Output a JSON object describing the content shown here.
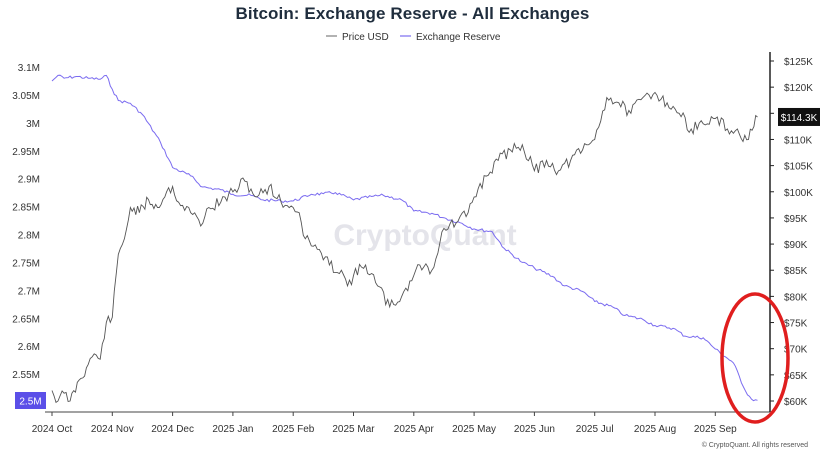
{
  "chart_data": {
    "type": "line",
    "title": "Bitcoin: Exchange Reserve - All Exchanges",
    "legend": [
      {
        "name": "Price USD",
        "color": "#666666"
      },
      {
        "name": "Exchange Reserve",
        "color": "#7b6cf0"
      }
    ],
    "legend_position": "top-center",
    "x_ticks": [
      "2024 Oct",
      "2024 Nov",
      "2024 Dec",
      "2025 Jan",
      "2025 Feb",
      "2025 Mar",
      "2025 Apr",
      "2025 May",
      "2025 Jun",
      "2025 Jul",
      "2025 Aug",
      "2025 Sep"
    ],
    "y_left_ticks": [
      "3.1M",
      "3.05M",
      "3M",
      "2.95M",
      "2.9M",
      "2.85M",
      "2.8M",
      "2.75M",
      "2.7M",
      "2.65M",
      "2.6M",
      "2.55M"
    ],
    "y_left_range": [
      2.5,
      3.1
    ],
    "y_left_current": "2.5M",
    "y_right_ticks": [
      "$125K",
      "$120K",
      "$115K",
      "$110K",
      "$105K",
      "$100K",
      "$95K",
      "$90K",
      "$85K",
      "$80K",
      "$75K",
      "$70K",
      "$65K",
      "$60K"
    ],
    "y_right_range": [
      60,
      125
    ],
    "y_right_current": "$114.3K",
    "series": [
      {
        "name": "Exchange Reserve",
        "unit": "M BTC",
        "x": [
          0,
          0.1,
          0.2,
          0.4,
          0.6,
          0.8,
          0.9,
          1.0,
          1.1,
          1.3,
          1.5,
          1.8,
          2.0,
          2.3,
          2.5,
          2.8,
          3.0,
          3.3,
          3.5,
          3.8,
          4.0,
          4.3,
          4.5,
          4.7,
          5.0,
          5.3,
          5.5,
          5.8,
          6.0,
          6.3,
          6.5,
          6.8,
          7.0,
          7.3,
          7.5,
          7.8,
          8.0,
          8.3,
          8.5,
          8.8,
          9.0,
          9.3,
          9.5,
          9.8,
          10.0,
          10.3,
          10.5,
          10.8,
          11.0,
          11.3,
          11.5,
          11.6,
          11.7
        ],
        "values": [
          3.075,
          3.085,
          3.08,
          3.083,
          3.08,
          3.078,
          3.085,
          3.06,
          3.04,
          3.035,
          3.015,
          2.965,
          2.92,
          2.905,
          2.885,
          2.88,
          2.872,
          2.87,
          2.862,
          2.86,
          2.86,
          2.872,
          2.873,
          2.875,
          2.862,
          2.868,
          2.87,
          2.862,
          2.842,
          2.838,
          2.83,
          2.82,
          2.81,
          2.805,
          2.775,
          2.75,
          2.74,
          2.725,
          2.708,
          2.698,
          2.68,
          2.67,
          2.655,
          2.648,
          2.637,
          2.632,
          2.618,
          2.615,
          2.595,
          2.57,
          2.52,
          2.505,
          2.503
        ]
      },
      {
        "name": "Price USD",
        "unit": "$K",
        "x": [
          0,
          0.1,
          0.2,
          0.3,
          0.45,
          0.6,
          0.7,
          0.8,
          0.9,
          1.0,
          1.1,
          1.2,
          1.3,
          1.45,
          1.6,
          1.75,
          1.9,
          2.0,
          2.1,
          2.3,
          2.5,
          2.6,
          2.8,
          3.0,
          3.2,
          3.4,
          3.6,
          3.8,
          4.0,
          4.1,
          4.2,
          4.4,
          4.6,
          4.8,
          4.9,
          5.0,
          5.2,
          5.4,
          5.6,
          5.8,
          6.0,
          6.1,
          6.3,
          6.5,
          6.7,
          6.9,
          7.0,
          7.2,
          7.4,
          7.6,
          7.8,
          8.0,
          8.2,
          8.4,
          8.6,
          8.8,
          9.0,
          9.2,
          9.4,
          9.6,
          9.8,
          10.0,
          10.2,
          10.4,
          10.6,
          10.8,
          11.0,
          11.2,
          11.4,
          11.55,
          11.7
        ],
        "values": [
          62,
          60,
          61.5,
          60,
          64,
          67,
          69,
          68,
          75,
          76,
          88,
          91,
          97,
          96,
          98.5,
          97,
          100,
          101,
          98,
          96,
          94,
          97,
          98,
          100,
          102,
          99,
          101,
          98,
          97,
          96,
          91,
          89,
          86,
          85,
          82,
          84,
          86,
          82,
          78,
          80,
          84,
          86,
          85,
          93,
          94,
          96,
          99,
          103,
          106,
          108,
          109,
          104,
          106,
          104,
          106,
          108,
          110,
          118,
          117,
          115,
          118,
          119,
          117,
          115,
          112,
          113,
          114,
          112,
          111,
          110,
          114.3
        ]
      }
    ],
    "watermark": "CryptoQuant",
    "copyright": "© CryptoQuant. All rights reserved",
    "annotation": "red circle highlighting the latest reserve drop to ~2.5M"
  }
}
